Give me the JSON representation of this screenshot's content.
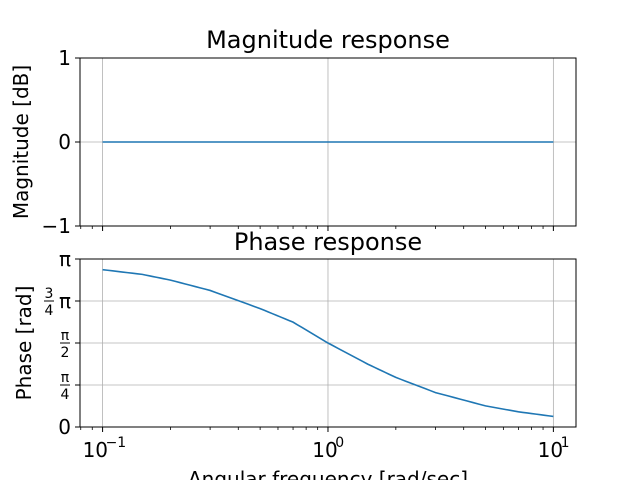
{
  "chart_data": [
    {
      "type": "line",
      "title": "Magnitude response",
      "ylabel": "Magnitude [dB]",
      "xlabel": "",
      "xscale": "log",
      "xlim": [
        0.0794,
        12.6
      ],
      "ylim": [
        -1,
        1
      ],
      "yticks": [
        {
          "value": -1,
          "label": "−1"
        },
        {
          "value": 0,
          "label": "0"
        },
        {
          "value": 1,
          "label": "1"
        }
      ],
      "grid": true,
      "line_color": "#1f77b4",
      "series": [
        {
          "x": [
            0.1,
            0.2,
            0.5,
            1,
            2,
            5,
            10
          ],
          "y": [
            0,
            0,
            0,
            0,
            0,
            0,
            0
          ]
        }
      ]
    },
    {
      "type": "line",
      "title": "Phase response",
      "ylabel": "Phase [rad]",
      "xlabel": "Angular frequency [rad/sec]",
      "xscale": "log",
      "xlim": [
        0.0794,
        12.6
      ],
      "ylim": [
        0,
        3.14159
      ],
      "xticks": [
        {
          "value": 0.1,
          "base": "10",
          "exp": "−1"
        },
        {
          "value": 1,
          "base": "10",
          "exp": "0"
        },
        {
          "value": 10,
          "base": "10",
          "exp": "1"
        }
      ],
      "yticks": [
        {
          "value": 0,
          "label": "0"
        },
        {
          "value": 0.7854,
          "num": "π",
          "den": "4"
        },
        {
          "value": 1.5708,
          "num": "π",
          "den": "2"
        },
        {
          "value": 2.3562,
          "num": "3",
          "den": "4",
          "suffix": "π"
        },
        {
          "value": 3.14159,
          "label": "π"
        }
      ],
      "grid": true,
      "line_color": "#1f77b4",
      "series": [
        {
          "x": [
            0.1,
            0.15,
            0.2,
            0.3,
            0.5,
            0.7,
            1,
            1.5,
            2,
            3,
            5,
            7,
            10
          ],
          "y": [
            2.9422,
            2.854,
            2.7468,
            2.5536,
            2.2143,
            1.9606,
            1.5708,
            1.176,
            0.9273,
            0.6435,
            0.3948,
            0.2838,
            0.1974
          ]
        }
      ]
    }
  ]
}
